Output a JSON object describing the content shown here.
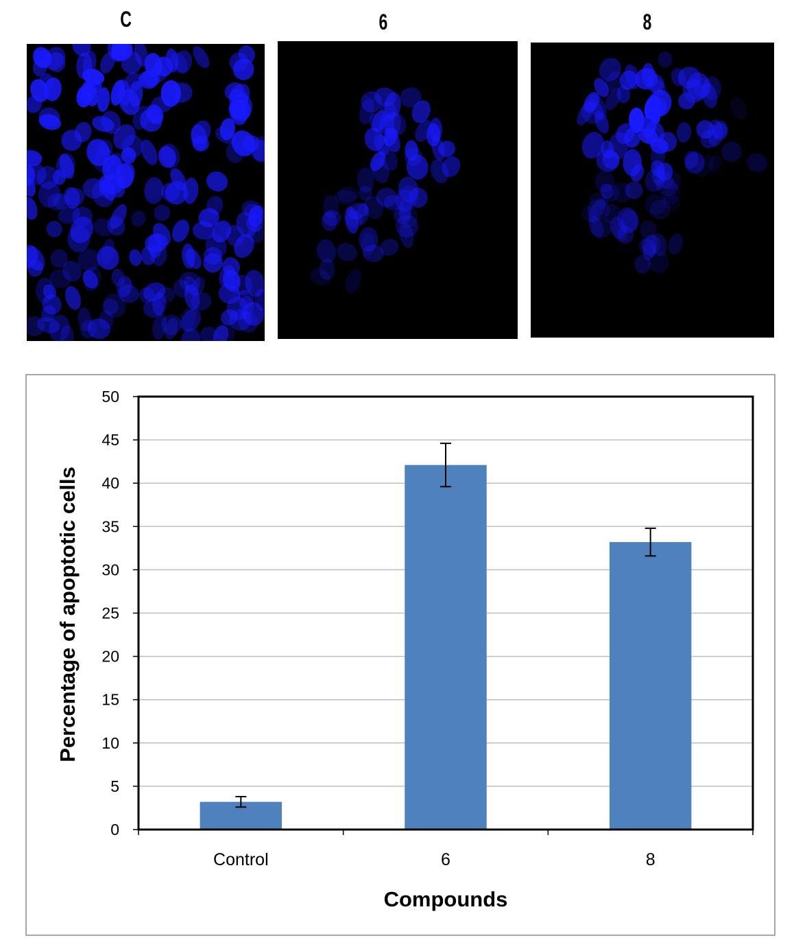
{
  "panels": [
    {
      "label": "C",
      "cell_density": "high"
    },
    {
      "label": "6",
      "cell_density": "cluster"
    },
    {
      "label": "8",
      "cell_density": "cluster"
    }
  ],
  "colors": {
    "nuclei": "#1a1aff",
    "background": "#000000",
    "bar": "#4f81bd",
    "grid": "#bfbfbf"
  },
  "chart_data": {
    "type": "bar",
    "categories": [
      "Control",
      "6",
      "8"
    ],
    "values": [
      3.2,
      42.1,
      33.2
    ],
    "error": [
      0.6,
      2.5,
      1.6
    ],
    "title": "",
    "xlabel": "Compounds",
    "ylabel": "Percentage of apoptotic cells",
    "ylim": [
      0,
      50
    ],
    "yticks": [
      0,
      5,
      10,
      15,
      20,
      25,
      30,
      35,
      40,
      45,
      50
    ],
    "grid": true,
    "legend": "none"
  }
}
